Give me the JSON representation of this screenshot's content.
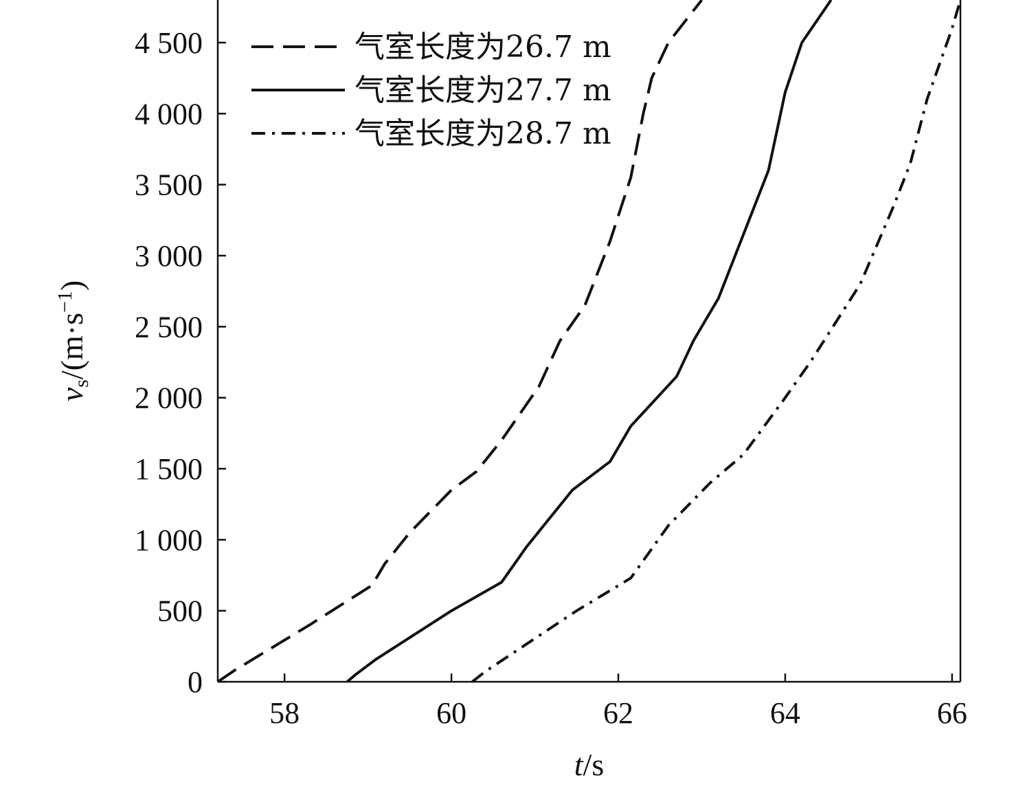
{
  "chart_data": {
    "type": "line",
    "xlabel": {
      "italic": "t",
      "rest": "/s"
    },
    "ylabel": {
      "italic": "v",
      "sub": "s",
      "unit_open": "/(m·s",
      "sup": "−1",
      "unit_close": ")"
    },
    "xlim": [
      57.2,
      66.1
    ],
    "ylim": [
      0,
      4800
    ],
    "x_ticks": [
      58,
      60,
      62,
      64,
      66
    ],
    "x_tick_labels": [
      "58",
      "60",
      "62",
      "64",
      "66"
    ],
    "y_ticks": [
      0,
      500,
      1000,
      1500,
      2000,
      2500,
      3000,
      3500,
      4000,
      4500
    ],
    "y_tick_labels": [
      "0",
      "500",
      "1 000",
      "1 500",
      "2 000",
      "2 500",
      "3 000",
      "3 500",
      "4 000",
      "4 500"
    ],
    "grid": false,
    "legend_position": "top-left",
    "series": [
      {
        "name": "气室长度为26.7 m",
        "dash": "dashed",
        "points": [
          [
            57.2,
            0
          ],
          [
            57.4,
            80
          ],
          [
            58.3,
            400
          ],
          [
            59.05,
            680
          ],
          [
            59.2,
            830
          ],
          [
            59.5,
            1050
          ],
          [
            60.0,
            1350
          ],
          [
            60.3,
            1480
          ],
          [
            60.6,
            1700
          ],
          [
            61.05,
            2080
          ],
          [
            61.3,
            2400
          ],
          [
            61.6,
            2650
          ],
          [
            61.9,
            3100
          ],
          [
            62.15,
            3550
          ],
          [
            62.3,
            4000
          ],
          [
            62.4,
            4250
          ],
          [
            62.6,
            4500
          ],
          [
            62.8,
            4650
          ],
          [
            63.0,
            4800
          ]
        ]
      },
      {
        "name": "气室长度为27.7 m",
        "dash": "solid",
        "points": [
          [
            58.75,
            0
          ],
          [
            58.85,
            50
          ],
          [
            59.1,
            160
          ],
          [
            60.0,
            500
          ],
          [
            60.6,
            700
          ],
          [
            60.9,
            950
          ],
          [
            61.45,
            1350
          ],
          [
            61.9,
            1550
          ],
          [
            62.15,
            1800
          ],
          [
            62.7,
            2150
          ],
          [
            62.9,
            2400
          ],
          [
            63.2,
            2700
          ],
          [
            63.5,
            3150
          ],
          [
            63.8,
            3600
          ],
          [
            64.0,
            4150
          ],
          [
            64.2,
            4500
          ],
          [
            64.55,
            4800
          ]
        ]
      },
      {
        "name": "气室长度为28.7 m",
        "dash": "dashdot",
        "points": [
          [
            60.25,
            0
          ],
          [
            60.4,
            70
          ],
          [
            61.5,
            500
          ],
          [
            62.15,
            730
          ],
          [
            62.6,
            1100
          ],
          [
            63.1,
            1400
          ],
          [
            63.5,
            1600
          ],
          [
            64.0,
            2000
          ],
          [
            64.3,
            2250
          ],
          [
            64.9,
            2800
          ],
          [
            65.3,
            3350
          ],
          [
            65.5,
            3650
          ],
          [
            65.7,
            4100
          ],
          [
            66.0,
            4600
          ],
          [
            66.1,
            4800
          ]
        ]
      }
    ]
  }
}
